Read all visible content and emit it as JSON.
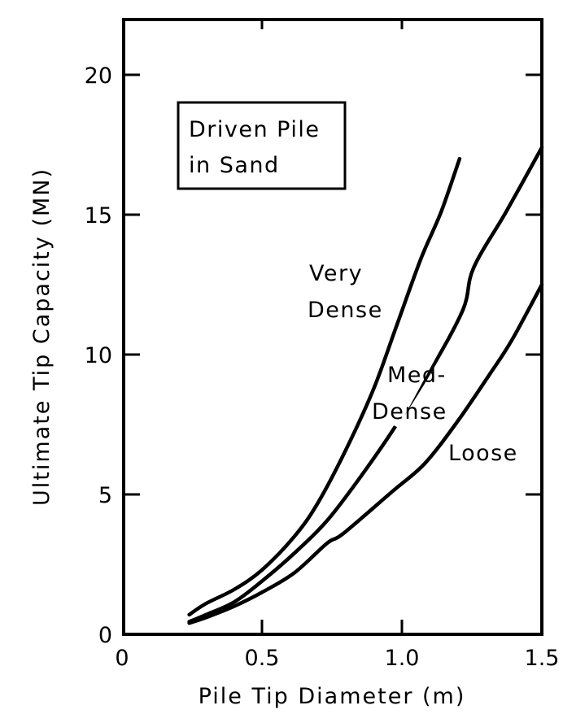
{
  "chart_data": {
    "type": "line",
    "title": "",
    "xlabel": "Pile Tip Diameter (m)",
    "ylabel": "Ultimate Tip Capacity (MN)",
    "xlim": [
      0,
      1.5
    ],
    "ylim": [
      0,
      22
    ],
    "x_ticks": [
      0,
      0.5,
      1.0,
      1.5
    ],
    "x_tick_labels": [
      "0",
      "0.5",
      "1.0",
      "1.5"
    ],
    "y_ticks": [
      0,
      5,
      10,
      15,
      20
    ],
    "y_tick_labels": [
      "0",
      "5",
      "10",
      "15",
      "20"
    ],
    "grid": false,
    "legend_box": {
      "lines": [
        "Driven Pile",
        "in Sand"
      ]
    },
    "series": [
      {
        "name": "Very Dense",
        "label_lines": [
          "Very",
          "Dense"
        ],
        "x": [
          0.24,
          0.3,
          0.4,
          0.5,
          0.616,
          0.7,
          0.8,
          0.9,
          0.98,
          1.067,
          1.14,
          1.206
        ],
        "y": [
          0.7,
          1.1,
          1.6,
          2.3,
          3.5,
          4.7,
          6.6,
          8.8,
          11.0,
          13.4,
          15.1,
          17.0
        ]
      },
      {
        "name": "Med-Dense",
        "label_lines": [
          "Med-",
          "Dense"
        ],
        "x": [
          0.24,
          0.3,
          0.4,
          0.5,
          0.616,
          0.733,
          0.85,
          0.968,
          1.1,
          1.218,
          1.256,
          1.372,
          1.5
        ],
        "y": [
          0.45,
          0.7,
          1.15,
          1.9,
          2.9,
          4.07,
          5.6,
          7.3,
          9.4,
          11.6,
          13.1,
          15.1,
          17.4
        ],
        "gap_between_x": [
          0.968,
          1.122
        ]
      },
      {
        "name": "Loose",
        "label_lines": [
          "Loose"
        ],
        "x": [
          0.24,
          0.3,
          0.4,
          0.5,
          0.616,
          0.733,
          0.79,
          0.965,
          1.081,
          1.198,
          1.314,
          1.392,
          1.5
        ],
        "y": [
          0.4,
          0.6,
          1.0,
          1.5,
          2.2,
          3.26,
          3.6,
          5.1,
          6.1,
          7.6,
          9.3,
          10.5,
          12.5
        ]
      }
    ]
  }
}
